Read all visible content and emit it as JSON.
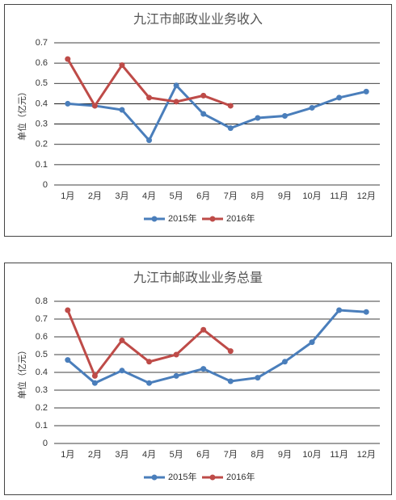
{
  "chart_data": [
    {
      "type": "line",
      "title": "九江市邮政业业务收入",
      "y_label": "单位（亿元）",
      "categories": [
        "1月",
        "2月",
        "3月",
        "4月",
        "5月",
        "6月",
        "7月",
        "8月",
        "9月",
        "10月",
        "11月",
        "12月"
      ],
      "series": [
        {
          "name": "2015年",
          "color": "#4a7ebb",
          "values": [
            0.4,
            0.39,
            0.37,
            0.22,
            0.49,
            0.35,
            0.28,
            0.33,
            0.34,
            0.38,
            0.43,
            0.46
          ]
        },
        {
          "name": "2016年",
          "color": "#be4b48",
          "values": [
            0.62,
            0.39,
            0.59,
            0.43,
            0.41,
            0.44,
            0.39,
            null,
            null,
            null,
            null,
            null
          ]
        }
      ],
      "ylim": [
        0,
        0.7
      ],
      "yticks": [
        0,
        0.1,
        0.2,
        0.3,
        0.4,
        0.5,
        0.6,
        0.7
      ],
      "grid": true,
      "legend": "bottom"
    },
    {
      "type": "line",
      "title": "九江市邮政业业务总量",
      "y_label": "单位（亿元）",
      "categories": [
        "1月",
        "2月",
        "3月",
        "4月",
        "5月",
        "6月",
        "7月",
        "8月",
        "9月",
        "10月",
        "11月",
        "12月"
      ],
      "series": [
        {
          "name": "2015年",
          "color": "#4a7ebb",
          "values": [
            0.47,
            0.34,
            0.41,
            0.34,
            0.38,
            0.42,
            0.35,
            0.37,
            0.46,
            0.57,
            0.75,
            0.74
          ]
        },
        {
          "name": "2016年",
          "color": "#be4b48",
          "values": [
            0.75,
            0.38,
            0.58,
            0.46,
            0.5,
            0.64,
            0.52,
            null,
            null,
            null,
            null,
            null
          ]
        }
      ],
      "ylim": [
        0,
        0.8
      ],
      "yticks": [
        0,
        0.1,
        0.2,
        0.3,
        0.4,
        0.5,
        0.6,
        0.7,
        0.8
      ],
      "grid": true,
      "legend": "bottom"
    }
  ]
}
